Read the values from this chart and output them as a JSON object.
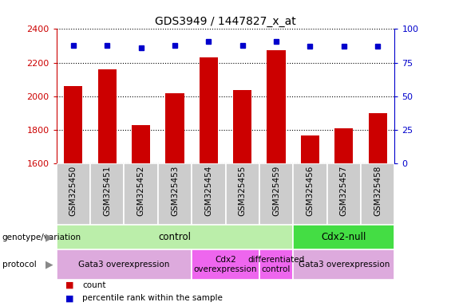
{
  "title": "GDS3949 / 1447827_x_at",
  "samples": [
    "GSM325450",
    "GSM325451",
    "GSM325452",
    "GSM325453",
    "GSM325454",
    "GSM325455",
    "GSM325459",
    "GSM325456",
    "GSM325457",
    "GSM325458"
  ],
  "counts": [
    2060,
    2160,
    1830,
    2020,
    2230,
    2040,
    2275,
    1770,
    1810,
    1900
  ],
  "percentile_ranks": [
    88,
    88,
    86,
    88,
    91,
    88,
    91,
    87,
    87,
    87
  ],
  "ylim": [
    1600,
    2400
  ],
  "yticks": [
    1600,
    1800,
    2000,
    2200,
    2400
  ],
  "right_ylim": [
    0,
    100
  ],
  "right_yticks": [
    0,
    25,
    50,
    75,
    100
  ],
  "bar_color": "#cc0000",
  "dot_color": "#0000cc",
  "title_fontsize": 10,
  "axis_color_left": "#cc0000",
  "axis_color_right": "#0000cc",
  "genotype_groups": [
    {
      "label": "control",
      "start": 0,
      "end": 7,
      "color": "#bbeeaa"
    },
    {
      "label": "Cdx2-null",
      "start": 7,
      "end": 10,
      "color": "#44dd44"
    }
  ],
  "protocol_groups": [
    {
      "label": "Gata3 overexpression",
      "start": 0,
      "end": 4,
      "color": "#ddaadd"
    },
    {
      "label": "Cdx2\noverexpression",
      "start": 4,
      "end": 6,
      "color": "#ee66ee"
    },
    {
      "label": "differentiated\ncontrol",
      "start": 6,
      "end": 7,
      "color": "#ee66ee"
    },
    {
      "label": "Gata3 overexpression",
      "start": 7,
      "end": 10,
      "color": "#ddaadd"
    }
  ],
  "legend_items": [
    {
      "label": "count",
      "color": "#cc0000"
    },
    {
      "label": "percentile rank within the sample",
      "color": "#0000cc"
    }
  ],
  "sample_col_color": "#cccccc",
  "n": 10
}
